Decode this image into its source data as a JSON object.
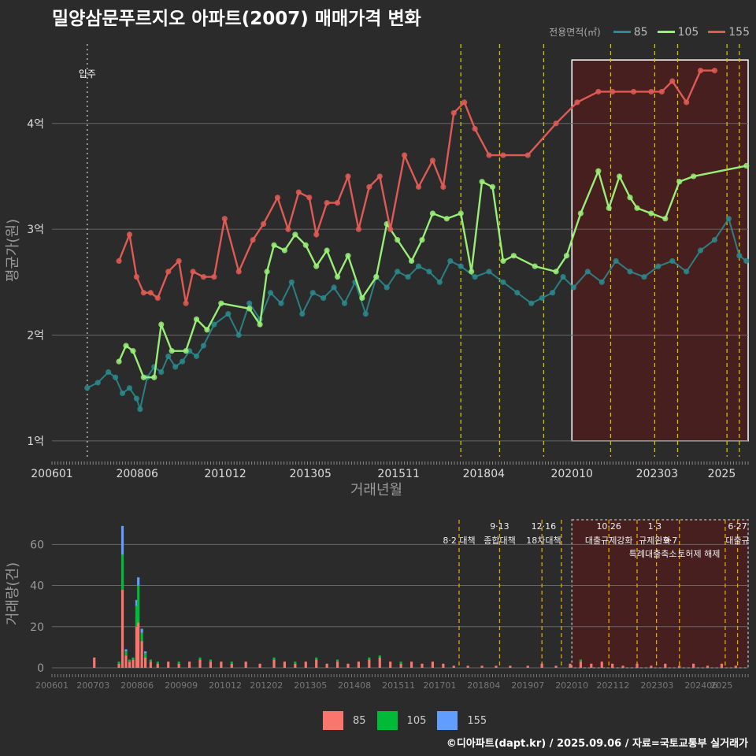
{
  "title": "밀양삼문푸르지오 아파트(2007) 매매가격 변화",
  "caption": "©디아파트(dapt.kr) / 2025.09.06 / 자료=국토교통부 실거래가",
  "legend_top": {
    "title": "전용면적(㎡)",
    "items": [
      {
        "label": "85",
        "color": "#2a8a8c"
      },
      {
        "label": "105",
        "color": "#99ee77"
      },
      {
        "label": "155",
        "color": "#e05a55"
      }
    ]
  },
  "legend_bottom": {
    "items": [
      {
        "label": "85",
        "color": "#f8766d"
      },
      {
        "label": "105",
        "color": "#00ba38"
      },
      {
        "label": "155",
        "color": "#619cff"
      }
    ]
  },
  "colors": {
    "background": "#2b2b2b",
    "grid": "#5a5a5a",
    "event_line": "#d4c200",
    "highlight_fill": "#4a1e1e"
  },
  "chart_data": [
    {
      "type": "line",
      "title": "밀양삼문푸르지오 아파트(2007) 매매가격 변화",
      "xlabel": "거래년월",
      "ylabel": "평균가(원)",
      "x_ticks": [
        "200601",
        "200806",
        "201012",
        "201305",
        "201511",
        "201804",
        "202010",
        "202303",
        "2025"
      ],
      "y_ticks": [
        "1억",
        "2억",
        "3억",
        "4억"
      ],
      "y_tick_values": [
        1,
        2,
        3,
        4
      ],
      "ylim": [
        0.85,
        4.75
      ],
      "xlim": [
        2006.0,
        2025.75
      ],
      "annotation_move_in": {
        "label": "입주",
        "x": 2007.0
      },
      "event_lines_x": [
        2017.6,
        2018.7,
        2019.95,
        2021.85,
        2023.1,
        2023.75,
        2025.15,
        2025.5
      ],
      "highlight_range": [
        2020.75,
        2025.75
      ],
      "highlight_y_range": [
        1.0,
        4.6
      ],
      "series": [
        {
          "name": "85",
          "color": "#2a8a8c",
          "x": [
            2007.0,
            2007.3,
            2007.6,
            2007.8,
            2008.0,
            2008.2,
            2008.4,
            2008.5,
            2008.7,
            2008.9,
            2009.1,
            2009.3,
            2009.5,
            2009.7,
            2009.9,
            2010.1,
            2010.3,
            2010.6,
            2011.0,
            2011.3,
            2011.6,
            2011.9,
            2012.2,
            2012.5,
            2012.8,
            2013.1,
            2013.4,
            2013.7,
            2014.0,
            2014.3,
            2014.6,
            2014.9,
            2015.2,
            2015.5,
            2015.8,
            2016.1,
            2016.4,
            2016.7,
            2017.0,
            2017.3,
            2017.6,
            2018.0,
            2018.4,
            2018.8,
            2019.2,
            2019.6,
            2019.9,
            2020.2,
            2020.5,
            2020.8,
            2021.2,
            2021.6,
            2022.0,
            2022.4,
            2022.8,
            2023.2,
            2023.6,
            2024.0,
            2024.4,
            2024.8,
            2025.2,
            2025.5,
            2025.7
          ],
          "y": [
            1.5,
            1.55,
            1.65,
            1.6,
            1.45,
            1.5,
            1.4,
            1.3,
            1.6,
            1.7,
            1.65,
            1.8,
            1.7,
            1.75,
            1.85,
            1.8,
            1.9,
            2.1,
            2.2,
            2.0,
            2.3,
            2.15,
            2.4,
            2.3,
            2.5,
            2.2,
            2.4,
            2.35,
            2.45,
            2.3,
            2.5,
            2.2,
            2.55,
            2.45,
            2.6,
            2.55,
            2.65,
            2.6,
            2.5,
            2.7,
            2.65,
            2.55,
            2.6,
            2.5,
            2.4,
            2.3,
            2.35,
            2.4,
            2.55,
            2.45,
            2.6,
            2.5,
            2.7,
            2.6,
            2.55,
            2.65,
            2.7,
            2.6,
            2.8,
            2.9,
            3.1,
            2.75,
            2.7
          ]
        },
        {
          "name": "105",
          "color": "#99ee77",
          "x": [
            2007.9,
            2008.1,
            2008.3,
            2008.6,
            2008.9,
            2009.1,
            2009.4,
            2009.8,
            2010.1,
            2010.4,
            2010.8,
            2011.6,
            2011.9,
            2012.1,
            2012.3,
            2012.6,
            2012.9,
            2013.2,
            2013.5,
            2013.8,
            2014.1,
            2014.4,
            2014.8,
            2015.2,
            2015.5,
            2015.8,
            2016.2,
            2016.5,
            2016.8,
            2017.2,
            2017.6,
            2017.9,
            2018.2,
            2018.5,
            2018.8,
            2019.1,
            2019.7,
            2020.3,
            2020.6,
            2021.0,
            2021.5,
            2021.8,
            2022.1,
            2022.4,
            2022.6,
            2023.0,
            2023.4,
            2023.8,
            2024.2,
            2025.7
          ],
          "y": [
            1.75,
            1.9,
            1.85,
            1.6,
            1.6,
            2.1,
            1.85,
            1.85,
            2.15,
            2.05,
            2.3,
            2.25,
            2.1,
            2.6,
            2.85,
            2.8,
            2.95,
            2.85,
            2.65,
            2.8,
            2.55,
            2.75,
            2.35,
            2.55,
            3.05,
            2.9,
            2.7,
            2.9,
            3.15,
            3.1,
            3.15,
            2.6,
            3.45,
            3.4,
            2.7,
            2.75,
            2.65,
            2.6,
            2.75,
            3.15,
            3.55,
            3.2,
            3.5,
            3.3,
            3.2,
            3.15,
            3.1,
            3.45,
            3.5,
            3.6
          ]
        },
        {
          "name": "155",
          "color": "#e05a55",
          "x": [
            2007.9,
            2008.2,
            2008.4,
            2008.6,
            2008.8,
            2009.0,
            2009.3,
            2009.6,
            2009.8,
            2010.0,
            2010.3,
            2010.6,
            2010.9,
            2011.3,
            2011.7,
            2012.0,
            2012.4,
            2012.7,
            2013.0,
            2013.3,
            2013.5,
            2013.8,
            2014.1,
            2014.4,
            2014.7,
            2015.0,
            2015.3,
            2015.6,
            2016.0,
            2016.4,
            2016.8,
            2017.1,
            2017.4,
            2017.7,
            2018.0,
            2018.4,
            2018.8,
            2019.5,
            2020.3,
            2020.9,
            2021.5,
            2021.9,
            2022.5,
            2023.0,
            2023.3,
            2023.6,
            2024.0,
            2024.4,
            2024.8
          ],
          "y": [
            2.7,
            2.95,
            2.55,
            2.4,
            2.4,
            2.35,
            2.6,
            2.7,
            2.3,
            2.6,
            2.55,
            2.55,
            3.1,
            2.6,
            2.9,
            3.05,
            3.3,
            3.0,
            3.35,
            3.3,
            2.95,
            3.25,
            3.25,
            3.5,
            3.0,
            3.4,
            3.5,
            3.0,
            3.7,
            3.4,
            3.65,
            3.4,
            4.1,
            4.2,
            3.95,
            3.7,
            3.7,
            3.7,
            4.0,
            4.2,
            4.3,
            4.3,
            4.3,
            4.3,
            4.3,
            4.4,
            4.2,
            4.5,
            4.5
          ]
        }
      ]
    },
    {
      "type": "bar",
      "xlabel": "",
      "ylabel": "거래량(건)",
      "x_ticks": [
        "200601",
        "200703",
        "200806",
        "200909",
        "201012",
        "201202",
        "201305",
        "201408",
        "201511",
        "201701",
        "201804",
        "201907",
        "202010",
        "202112",
        "202303",
        "202406",
        "2025"
      ],
      "y_ticks": [
        "0",
        "20",
        "40",
        "60"
      ],
      "y_tick_values": [
        0,
        20,
        40,
        60
      ],
      "ylim": [
        0,
        72
      ],
      "event_lines_x": [
        2017.55,
        2018.7,
        2019.9,
        2020.45,
        2021.8,
        2022.6,
        2023.15,
        2023.8,
        2025.1,
        2025.45
      ],
      "highlight_range": [
        2020.75,
        2025.75
      ],
      "events": [
        {
          "label": "8·2 대책",
          "x": 2017.55,
          "row": 1
        },
        {
          "label": "9·13",
          "x": 2018.7,
          "row": 0
        },
        {
          "label": "종합대책",
          "x": 2018.7,
          "row": 1
        },
        {
          "label": "12·16",
          "x": 2019.95,
          "row": 0
        },
        {
          "label": "18차대책",
          "x": 2019.95,
          "row": 1
        },
        {
          "label": "10·26",
          "x": 2021.8,
          "row": 0
        },
        {
          "label": "대출규제강화",
          "x": 2021.8,
          "row": 1
        },
        {
          "label": "1·3",
          "x": 2023.1,
          "row": 0
        },
        {
          "label": "규제완화",
          "x": 2023.1,
          "row": 1
        },
        {
          "label": "9·7",
          "x": 2023.55,
          "row": 1
        },
        {
          "label": "특례대출축소",
          "x": 2023.05,
          "row": 2
        },
        {
          "label": "토허제 해제",
          "x": 2024.35,
          "row": 2
        },
        {
          "label": "6·27",
          "x": 2025.45,
          "row": 0
        },
        {
          "label": "대출규",
          "x": 2025.45,
          "row": 1
        }
      ],
      "series": [
        {
          "name": "85",
          "color": "#f8766d"
        },
        {
          "name": "105",
          "color": "#00ba38"
        },
        {
          "name": "155",
          "color": "#619cff"
        }
      ],
      "bars": [
        {
          "x": 2007.2,
          "v": [
            5,
            0,
            0
          ]
        },
        {
          "x": 2007.9,
          "v": [
            2,
            1,
            0
          ]
        },
        {
          "x": 2008.0,
          "v": [
            38,
            17,
            14
          ]
        },
        {
          "x": 2008.1,
          "v": [
            6,
            2,
            1
          ]
        },
        {
          "x": 2008.2,
          "v": [
            3,
            1,
            0
          ]
        },
        {
          "x": 2008.3,
          "v": [
            4,
            1,
            0
          ]
        },
        {
          "x": 2008.4,
          "v": [
            20,
            10,
            3
          ]
        },
        {
          "x": 2008.45,
          "v": [
            22,
            18,
            4
          ]
        },
        {
          "x": 2008.55,
          "v": [
            13,
            4,
            2
          ]
        },
        {
          "x": 2008.65,
          "v": [
            5,
            2,
            1
          ]
        },
        {
          "x": 2008.8,
          "v": [
            3,
            1,
            0
          ]
        },
        {
          "x": 2009.0,
          "v": [
            2,
            1,
            0
          ]
        },
        {
          "x": 2009.3,
          "v": [
            3,
            0,
            0
          ]
        },
        {
          "x": 2009.6,
          "v": [
            2,
            1,
            0
          ]
        },
        {
          "x": 2009.9,
          "v": [
            3,
            0,
            0
          ]
        },
        {
          "x": 2010.2,
          "v": [
            4,
            1,
            0
          ]
        },
        {
          "x": 2010.5,
          "v": [
            3,
            1,
            0
          ]
        },
        {
          "x": 2010.8,
          "v": [
            3,
            0,
            0
          ]
        },
        {
          "x": 2011.1,
          "v": [
            2,
            1,
            0
          ]
        },
        {
          "x": 2011.5,
          "v": [
            3,
            0,
            0
          ]
        },
        {
          "x": 2011.9,
          "v": [
            2,
            0,
            0
          ]
        },
        {
          "x": 2012.3,
          "v": [
            4,
            1,
            0
          ]
        },
        {
          "x": 2012.6,
          "v": [
            3,
            0,
            0
          ]
        },
        {
          "x": 2012.9,
          "v": [
            2,
            1,
            0
          ]
        },
        {
          "x": 2013.2,
          "v": [
            3,
            0,
            0
          ]
        },
        {
          "x": 2013.5,
          "v": [
            4,
            1,
            0
          ]
        },
        {
          "x": 2013.8,
          "v": [
            2,
            0,
            0
          ]
        },
        {
          "x": 2014.1,
          "v": [
            3,
            1,
            0
          ]
        },
        {
          "x": 2014.4,
          "v": [
            2,
            0,
            0
          ]
        },
        {
          "x": 2014.7,
          "v": [
            3,
            0,
            0
          ]
        },
        {
          "x": 2015.0,
          "v": [
            4,
            1,
            0
          ]
        },
        {
          "x": 2015.3,
          "v": [
            5,
            1,
            0
          ]
        },
        {
          "x": 2015.6,
          "v": [
            3,
            0,
            0
          ]
        },
        {
          "x": 2015.9,
          "v": [
            2,
            1,
            0
          ]
        },
        {
          "x": 2016.2,
          "v": [
            3,
            0,
            0
          ]
        },
        {
          "x": 2016.5,
          "v": [
            2,
            0,
            0
          ]
        },
        {
          "x": 2016.8,
          "v": [
            3,
            0,
            0
          ]
        },
        {
          "x": 2017.1,
          "v": [
            2,
            0,
            0
          ]
        },
        {
          "x": 2017.4,
          "v": [
            1,
            0,
            0
          ]
        },
        {
          "x": 2017.8,
          "v": [
            1,
            0,
            0
          ]
        },
        {
          "x": 2018.2,
          "v": [
            1,
            0,
            0
          ]
        },
        {
          "x": 2018.6,
          "v": [
            1,
            0,
            0
          ]
        },
        {
          "x": 2019.0,
          "v": [
            1,
            0,
            0
          ]
        },
        {
          "x": 2019.5,
          "v": [
            1,
            0,
            0
          ]
        },
        {
          "x": 2019.9,
          "v": [
            2,
            0,
            0
          ]
        },
        {
          "x": 2020.3,
          "v": [
            1,
            0,
            0
          ]
        },
        {
          "x": 2020.7,
          "v": [
            2,
            0,
            0
          ]
        },
        {
          "x": 2021.0,
          "v": [
            3,
            1,
            0
          ]
        },
        {
          "x": 2021.3,
          "v": [
            2,
            0,
            0
          ]
        },
        {
          "x": 2021.6,
          "v": [
            3,
            0,
            0
          ]
        },
        {
          "x": 2021.9,
          "v": [
            2,
            0,
            0
          ]
        },
        {
          "x": 2022.2,
          "v": [
            1,
            0,
            0
          ]
        },
        {
          "x": 2022.6,
          "v": [
            2,
            0,
            0
          ]
        },
        {
          "x": 2023.0,
          "v": [
            1,
            0,
            0
          ]
        },
        {
          "x": 2023.4,
          "v": [
            2,
            0,
            0
          ]
        },
        {
          "x": 2023.8,
          "v": [
            1,
            0,
            0
          ]
        },
        {
          "x": 2024.2,
          "v": [
            2,
            0,
            0
          ]
        },
        {
          "x": 2024.6,
          "v": [
            1,
            0,
            0
          ]
        },
        {
          "x": 2025.0,
          "v": [
            2,
            0,
            0
          ]
        },
        {
          "x": 2025.4,
          "v": [
            1,
            0,
            0
          ]
        }
      ]
    }
  ]
}
